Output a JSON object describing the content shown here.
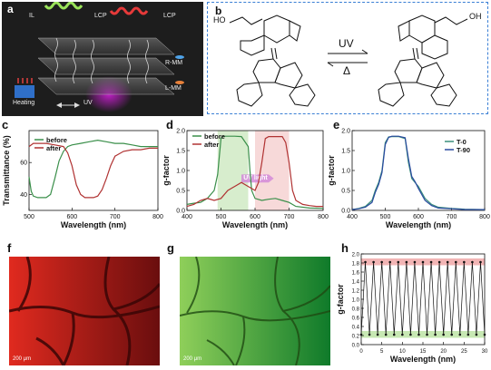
{
  "panel_a": {
    "letter": "a",
    "labels": {
      "il": "IL",
      "lcp_left": "LCP",
      "lcp_right": "LCP",
      "rmm": "R-MM",
      "lmm": "L-MM",
      "heating": "Heating",
      "uv": "UV"
    },
    "colors": {
      "background": "#1d1d1d",
      "rmm_dot": "#4fa3e8",
      "lmm_dot": "#e8813a"
    }
  },
  "panel_b": {
    "letter": "b",
    "forward_label": "UV",
    "reverse_label": "Δ",
    "left_molecule_group": "HO",
    "right_molecule_group": "OH",
    "border_color": "#3a7fd5"
  },
  "panel_c": {
    "letter": "c",
    "chart_data": {
      "type": "line",
      "xlabel": "Wavelength  (nm)",
      "ylabel": "Transmittance (%)",
      "xlim": [
        500,
        800
      ],
      "ylim": [
        30,
        80
      ],
      "xticks": [
        500,
        600,
        700,
        800
      ],
      "yticks": [
        40,
        60
      ],
      "legend_position": "top-left",
      "series": [
        {
          "name": "before",
          "color": "#3a8f4a",
          "x": [
            500,
            505,
            510,
            520,
            530,
            540,
            550,
            560,
            570,
            580,
            590,
            600,
            620,
            640,
            660,
            680,
            700,
            720,
            740,
            760,
            780,
            800
          ],
          "values": [
            51,
            42,
            39,
            38,
            38,
            38,
            40,
            50,
            61,
            67,
            70,
            71,
            72,
            73,
            74,
            73,
            72,
            72,
            71,
            70,
            70,
            70
          ]
        },
        {
          "name": "after",
          "color": "#b03232",
          "x": [
            500,
            510,
            520,
            540,
            560,
            580,
            590,
            600,
            610,
            620,
            630,
            640,
            650,
            660,
            670,
            680,
            690,
            700,
            720,
            740,
            760,
            780,
            800
          ],
          "values": [
            70,
            72,
            72,
            72,
            71,
            70,
            66,
            58,
            46,
            40,
            38,
            38,
            38,
            39,
            43,
            50,
            58,
            64,
            67,
            68,
            68,
            69,
            69
          ]
        }
      ]
    }
  },
  "panel_d": {
    "letter": "d",
    "chart_data": {
      "type": "line",
      "xlabel": "Wavelength  (nm)",
      "ylabel": "g-factor",
      "xlim": [
        400,
        800
      ],
      "ylim": [
        0,
        2.0
      ],
      "xticks": [
        400,
        500,
        600,
        700,
        800
      ],
      "yticks": [
        0.0,
        0.5,
        1.0,
        1.5,
        2.0
      ],
      "legend_position": "top-left",
      "annotation": "UV light",
      "series": [
        {
          "name": "before",
          "color": "#3a8f4a",
          "x": [
            400,
            420,
            440,
            460,
            480,
            490,
            500,
            505,
            510,
            520,
            540,
            560,
            580,
            585,
            590,
            600,
            620,
            640,
            660,
            680,
            700,
            720,
            760,
            800
          ],
          "values": [
            0.15,
            0.18,
            0.2,
            0.3,
            0.5,
            0.9,
            1.8,
            1.85,
            1.86,
            1.86,
            1.86,
            1.85,
            1.6,
            1.0,
            0.5,
            0.3,
            0.25,
            0.28,
            0.3,
            0.25,
            0.2,
            0.1,
            0.06,
            0.05
          ]
        },
        {
          "name": "after",
          "color": "#b03232",
          "x": [
            400,
            420,
            440,
            460,
            480,
            500,
            520,
            540,
            560,
            580,
            600,
            610,
            620,
            630,
            640,
            660,
            680,
            690,
            700,
            710,
            720,
            740,
            760,
            780,
            800
          ],
          "values": [
            0.1,
            0.15,
            0.25,
            0.3,
            0.25,
            0.3,
            0.5,
            0.6,
            0.7,
            0.6,
            0.5,
            0.7,
            1.2,
            1.8,
            1.85,
            1.85,
            1.85,
            1.7,
            1.2,
            0.5,
            0.25,
            0.15,
            0.12,
            0.1,
            0.1
          ]
        }
      ]
    }
  },
  "panel_e": {
    "letter": "e",
    "chart_data": {
      "type": "line",
      "xlabel": "Wavelength  (nm)",
      "ylabel": "g-factor",
      "xlim": [
        400,
        800
      ],
      "ylim": [
        0,
        2.0
      ],
      "xticks": [
        400,
        500,
        600,
        700,
        800
      ],
      "yticks": [
        0.0,
        0.5,
        1.0,
        1.5,
        2.0
      ],
      "legend_position": "top-right",
      "series": [
        {
          "name": "T-0",
          "color": "#3a8f7a",
          "x": [
            400,
            420,
            440,
            460,
            470,
            480,
            490,
            500,
            510,
            520,
            540,
            560,
            570,
            580,
            590,
            600,
            620,
            640,
            660,
            700,
            740,
            800
          ],
          "values": [
            0.02,
            0.05,
            0.1,
            0.25,
            0.5,
            0.7,
            1.0,
            1.7,
            1.84,
            1.85,
            1.85,
            1.8,
            1.2,
            0.8,
            0.7,
            0.6,
            0.3,
            0.15,
            0.08,
            0.05,
            0.03,
            0.02
          ]
        },
        {
          "name": "T-90",
          "color": "#2a4aa0",
          "x": [
            400,
            420,
            440,
            460,
            470,
            480,
            490,
            500,
            510,
            520,
            540,
            560,
            570,
            580,
            590,
            600,
            620,
            640,
            660,
            700,
            740,
            800
          ],
          "values": [
            0.02,
            0.04,
            0.08,
            0.2,
            0.45,
            0.65,
            0.95,
            1.65,
            1.83,
            1.86,
            1.86,
            1.82,
            1.3,
            0.85,
            0.72,
            0.55,
            0.25,
            0.12,
            0.06,
            0.04,
            0.02,
            0.02
          ]
        }
      ]
    }
  },
  "panel_f": {
    "letter": "f",
    "scale_bar": "200 μm",
    "tint": "#d42020"
  },
  "panel_g": {
    "letter": "g",
    "scale_bar": "200 μm",
    "tint": "#2fa02f"
  },
  "panel_h": {
    "letter": "h",
    "chart_data": {
      "type": "line",
      "xlabel": "Wavelength (nm)",
      "ylabel": "g-factor",
      "xlim": [
        0,
        30
      ],
      "ylim": [
        0,
        2.0
      ],
      "xticks": [
        0,
        5,
        10,
        15,
        20,
        25,
        30
      ],
      "yticks": [
        0.0,
        0.2,
        0.4,
        0.6,
        0.8,
        1.0,
        1.2,
        1.4,
        1.6,
        1.8,
        2.0
      ],
      "high_band": [
        1.75,
        1.9
      ],
      "low_band": [
        0.15,
        0.3
      ],
      "series": [
        {
          "name": "",
          "color": "#111111",
          "x": [
            0,
            1,
            2,
            3,
            4,
            5,
            6,
            7,
            8,
            9,
            10,
            11,
            12,
            13,
            14,
            15,
            16,
            17,
            18,
            19,
            20,
            21,
            22,
            23,
            24,
            25,
            26,
            27,
            28,
            29,
            30
          ],
          "values": [
            0.22,
            1.82,
            0.22,
            1.82,
            0.22,
            1.82,
            0.22,
            1.82,
            0.22,
            1.82,
            0.22,
            1.82,
            0.22,
            1.82,
            0.22,
            1.82,
            0.22,
            1.82,
            0.22,
            1.82,
            0.22,
            1.82,
            0.22,
            1.82,
            0.22,
            1.82,
            0.22,
            1.82,
            0.22,
            1.82,
            0.22
          ]
        }
      ]
    }
  }
}
